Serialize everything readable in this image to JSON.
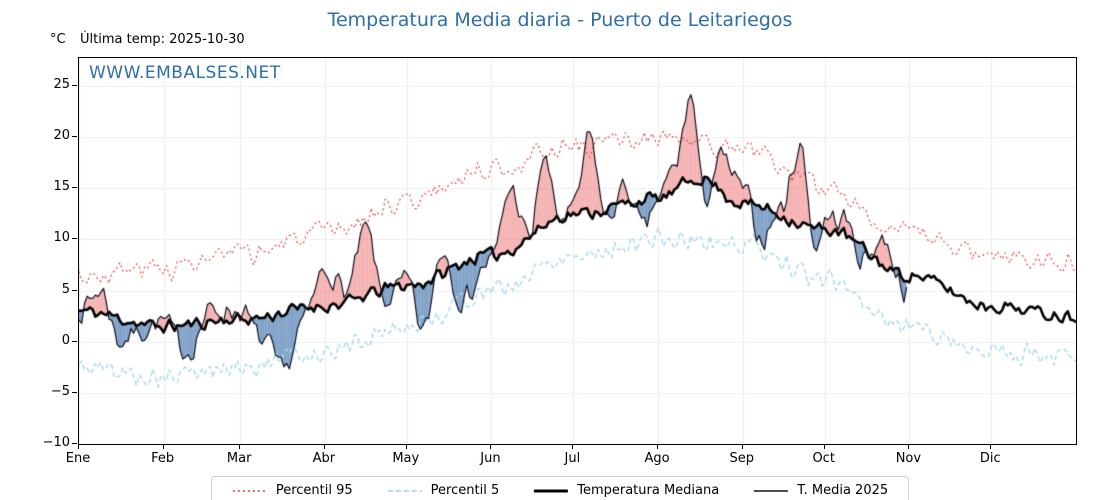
{
  "title": "Temperatura Media diaria - Puerto de Leitariegos",
  "header": {
    "unit_label": "°C",
    "last_temp_label": "Última temp: 2025-10-30"
  },
  "watermark": "WWW.EMBALSES.NET",
  "colors": {
    "title": "#2e6fa8",
    "watermark": "#2e6fa8",
    "percentil95": "#e23434",
    "percentil5": "#a8d8ea",
    "mediana": "#000000",
    "t2025": "#10101e"
  },
  "chart_data": {
    "type": "line",
    "title": "Temperatura Media diaria - Puerto de Leitariegos",
    "ylabel": "°C",
    "ylim": [
      -10,
      27.74
    ],
    "y_ticks": [
      -10,
      -5,
      0,
      5,
      10,
      15,
      20,
      25
    ],
    "y_tick_labels": [
      "−10",
      "−5",
      "0",
      "5",
      "10",
      "15",
      "20",
      "25"
    ],
    "x_tick_labels": [
      "Ene",
      "Feb",
      "Mar",
      "Abr",
      "May",
      "Jun",
      "Jul",
      "Ago",
      "Sep",
      "Oct",
      "Nov",
      "Dic"
    ],
    "month_start_days": [
      0,
      31,
      59,
      90,
      120,
      151,
      181,
      212,
      243,
      273,
      304,
      334
    ],
    "days_in_year": 365,
    "grid": true,
    "legend_position": "bottom",
    "fill_above": "rgba(234,88,88,0.45)",
    "fill_below": "rgba(62,112,172,0.65)",
    "series": [
      {
        "key": "p95",
        "name": "Percentil 95",
        "style": "dotted",
        "color": "#e23434",
        "noise": 1.3,
        "days": [
          0,
          31,
          59,
          90,
          120,
          151,
          181,
          212,
          243,
          273,
          304,
          334,
          365
        ],
        "values": [
          6.5,
          7.2,
          8.5,
          10.5,
          13.8,
          17.0,
          19.2,
          19.8,
          18.8,
          15.0,
          10.5,
          8.5,
          8.0
        ]
      },
      {
        "key": "p5",
        "name": "Percentil 5",
        "style": "dashed",
        "color": "#a8d8ea",
        "noise": 1.3,
        "days": [
          0,
          31,
          59,
          90,
          120,
          151,
          181,
          212,
          243,
          273,
          304,
          334,
          365
        ],
        "values": [
          -2.5,
          -3.5,
          -2.5,
          -1.0,
          1.5,
          5.0,
          8.5,
          10.0,
          9.5,
          6.0,
          1.5,
          -1.0,
          -1.5
        ]
      },
      {
        "key": "mediana",
        "name": "Temperatura Mediana",
        "style": "thick",
        "color": "#000000",
        "noise": 0.8,
        "days": [
          0,
          31,
          59,
          90,
          120,
          151,
          181,
          212,
          227,
          243,
          273,
          304,
          334,
          365
        ],
        "values": [
          3.0,
          1.5,
          2.2,
          3.5,
          5.5,
          8.5,
          12.5,
          14.0,
          16.0,
          13.5,
          11.0,
          6.5,
          3.5,
          2.5
        ]
      },
      {
        "key": "t2025",
        "name": "T. Media 2025",
        "style": "thin",
        "color": "#10101e",
        "noise": 1.4,
        "days": [
          0,
          8,
          15,
          22,
          31,
          40,
          48,
          59,
          68,
          75,
          82,
          90,
          98,
          105,
          112,
          120,
          126,
          133,
          140,
          151,
          158,
          165,
          170,
          176,
          181,
          187,
          193,
          200,
          207,
          212,
          218,
          224,
          229,
          235,
          243,
          250,
          257,
          264,
          270,
          273,
          280,
          287,
          294,
          303
        ],
        "values": [
          3,
          5,
          0,
          1,
          2,
          -1,
          3,
          3,
          0,
          -3,
          2,
          7,
          5,
          11,
          4,
          6,
          1,
          9,
          4,
          8,
          15,
          10,
          18,
          12,
          13,
          20,
          12,
          15,
          11,
          14,
          17,
          24,
          14,
          18,
          15,
          10,
          13,
          19,
          9,
          12,
          12,
          8,
          10,
          5
        ]
      }
    ]
  }
}
